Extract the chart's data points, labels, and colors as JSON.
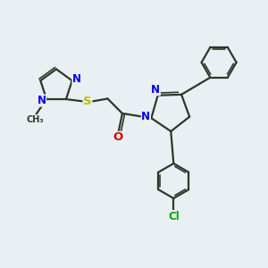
{
  "bg_color": "#eaeff3",
  "bond_color": "#2a3a2a",
  "N_color": "#0000ee",
  "O_color": "#dd0000",
  "S_color": "#bbbb00",
  "Cl_color": "#00aa00",
  "bond_width": 1.6,
  "font_size": 8.5,
  "xlim": [
    0,
    10
  ],
  "ylim": [
    0,
    10
  ]
}
